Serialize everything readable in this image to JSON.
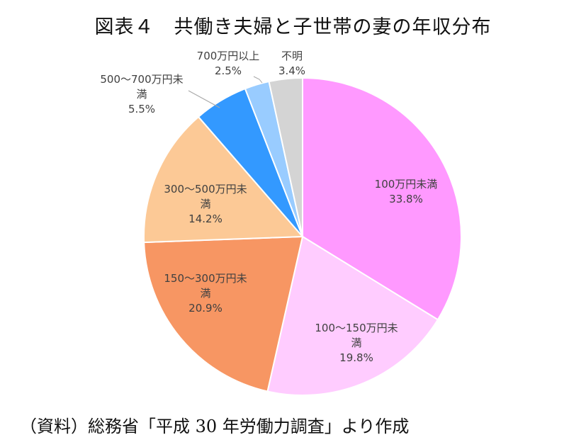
{
  "title": "図表４　共働き夫婦と子世帯の妻の年収分布",
  "source": "（資料）総務省「平成 30 年労働力調査」より作成",
  "chart_data": {
    "type": "pie",
    "start_angle_deg": 0,
    "direction": "clockwise",
    "slices": [
      {
        "label_lines": [
          "100万円未満"
        ],
        "value": 33.8,
        "pct": "33.8%",
        "color": "#ff99ff"
      },
      {
        "label_lines": [
          "100～150万円未",
          "満"
        ],
        "value": 19.8,
        "pct": "19.8%",
        "color": "#ffccff"
      },
      {
        "label_lines": [
          "150～300万円未",
          "満"
        ],
        "value": 20.9,
        "pct": "20.9%",
        "color": "#f79663"
      },
      {
        "label_lines": [
          "300～500万円未",
          "満"
        ],
        "value": 14.2,
        "pct": "14.2%",
        "color": "#fcc996"
      },
      {
        "label_lines": [
          "500～700万円未",
          "満"
        ],
        "value": 5.5,
        "pct": "5.5%",
        "color": "#3399ff"
      },
      {
        "label_lines": [
          "700万円以上"
        ],
        "value": 2.5,
        "pct": "2.5%",
        "color": "#99ccff"
      },
      {
        "label_lines": [
          "不明"
        ],
        "value": 3.4,
        "pct": "3.4%",
        "color": "#d4d4d4"
      }
    ]
  }
}
